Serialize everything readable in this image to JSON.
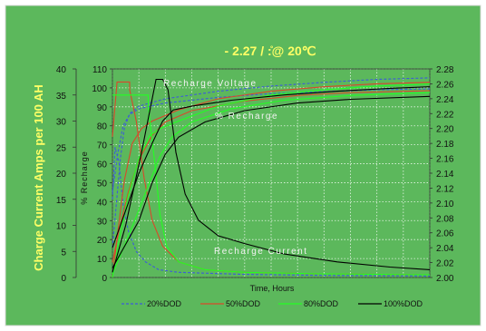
{
  "chart_data": {
    "type": "line",
    "title": "- 2.27   /   :̊@ 20℃",
    "xlabel": "Time, Hours",
    "ylabel_left": "Charge Current Amps per 100  AH",
    "ylabel_inner": "% Recharge",
    "annotations": [
      "Recharge Voltage",
      "% Recharge",
      "Recharge Current"
    ],
    "axis_left": {
      "min": 0,
      "max": 40,
      "ticks": [
        0,
        5,
        10,
        15,
        20,
        25,
        30,
        35,
        40
      ]
    },
    "axis_inner": {
      "min": 0,
      "max": 110,
      "ticks": [
        0,
        10,
        20,
        30,
        40,
        50,
        60,
        70,
        80,
        90,
        100,
        110
      ]
    },
    "axis_right": {
      "min": 2.0,
      "max": 2.28,
      "ticks": [
        "2.00",
        "2.02",
        "2.04",
        "2.06",
        "2.08",
        "2.10",
        "2.12",
        "2.14",
        "2.16",
        "2.18",
        "2.20",
        "2.22",
        "2.24",
        "2.26",
        "2.28"
      ]
    },
    "x_range": [
      0,
      24
    ],
    "grid": true,
    "legend_position": "bottom",
    "colors": {
      "background": "#5cb85c",
      "20%DOD": "#3d5bd9",
      "50%DOD": "#d9482a",
      "80%DOD": "#22ff22",
      "100%DOD": "#000000"
    },
    "series": [
      {
        "name": "20%DOD",
        "color": "#3d5bd9",
        "dashed": true,
        "voltage": [
          [
            0,
            2.04
          ],
          [
            0.3,
            2.1
          ],
          [
            0.6,
            2.16
          ],
          [
            0.9,
            2.2
          ],
          [
            1.3,
            2.22
          ],
          [
            2,
            2.23
          ],
          [
            4,
            2.24
          ],
          [
            8,
            2.25
          ],
          [
            12,
            2.257
          ],
          [
            16,
            2.262
          ],
          [
            20,
            2.266
          ],
          [
            24,
            2.268
          ]
        ],
        "current": [
          [
            0,
            15
          ],
          [
            0.2,
            25
          ],
          [
            0.5,
            22
          ],
          [
            0.8,
            14
          ],
          [
            1.2,
            9
          ],
          [
            1.8,
            5
          ],
          [
            2.5,
            3
          ],
          [
            3.5,
            1.5
          ],
          [
            5,
            1
          ],
          [
            10,
            0.6
          ],
          [
            16,
            0.4
          ],
          [
            24,
            0.3
          ]
        ],
        "recharge": [
          [
            0,
            45
          ],
          [
            0.4,
            65
          ],
          [
            0.8,
            80
          ],
          [
            1.3,
            86
          ],
          [
            2,
            89
          ],
          [
            4,
            92
          ],
          [
            8,
            95
          ],
          [
            12,
            97
          ],
          [
            16,
            98
          ],
          [
            20,
            99
          ],
          [
            24,
            99.5
          ]
        ]
      },
      {
        "name": "50%DOD",
        "color": "#d9482a",
        "dashed": false,
        "voltage": [
          [
            0,
            2.0
          ],
          [
            0.4,
            2.06
          ],
          [
            0.9,
            2.13
          ],
          [
            1.5,
            2.18
          ],
          [
            2.2,
            2.2
          ],
          [
            3,
            2.21
          ],
          [
            5,
            2.225
          ],
          [
            8,
            2.24
          ],
          [
            12,
            2.25
          ],
          [
            16,
            2.256
          ],
          [
            20,
            2.26
          ],
          [
            24,
            2.262
          ]
        ],
        "current": [
          [
            0,
            27
          ],
          [
            0.35,
            37.5
          ],
          [
            1.3,
            37.5
          ],
          [
            1.3,
            36
          ],
          [
            1.8,
            30
          ],
          [
            2.4,
            19
          ],
          [
            3,
            11
          ],
          [
            3.8,
            6
          ],
          [
            5,
            3
          ],
          [
            7,
            1.5
          ],
          [
            10,
            1
          ],
          [
            16,
            0.7
          ],
          [
            24,
            0.5
          ]
        ],
        "recharge": [
          [
            0,
            8
          ],
          [
            0.5,
            25
          ],
          [
            1.2,
            45
          ],
          [
            2,
            62
          ],
          [
            3,
            75
          ],
          [
            4,
            82
          ],
          [
            6,
            88
          ],
          [
            10,
            93
          ],
          [
            14,
            96
          ],
          [
            18,
            97.5
          ],
          [
            24,
            98.5
          ]
        ]
      },
      {
        "name": "80%DOD",
        "color": "#22ff22",
        "dashed": false,
        "voltage": [
          [
            0,
            2.0
          ],
          [
            0.5,
            2.05
          ],
          [
            1.2,
            2.11
          ],
          [
            2,
            2.16
          ],
          [
            2.8,
            2.19
          ],
          [
            3.6,
            2.2
          ],
          [
            5,
            2.21
          ],
          [
            8,
            2.23
          ],
          [
            12,
            2.245
          ],
          [
            16,
            2.252
          ],
          [
            20,
            2.257
          ],
          [
            24,
            2.26
          ]
        ],
        "current": [
          [
            0,
            35
          ],
          [
            2.7,
            35
          ],
          [
            2.7,
            33
          ],
          [
            3.2,
            22
          ],
          [
            3.6,
            12
          ],
          [
            4.1,
            6
          ],
          [
            5,
            3
          ],
          [
            7,
            1.5
          ],
          [
            10,
            1
          ],
          [
            16,
            0.7
          ],
          [
            24,
            0.5
          ]
        ],
        "recharge": [
          [
            0,
            2
          ],
          [
            0.8,
            15
          ],
          [
            1.8,
            32
          ],
          [
            2.8,
            50
          ],
          [
            3.6,
            64
          ],
          [
            4.5,
            74
          ],
          [
            6,
            82
          ],
          [
            9,
            89
          ],
          [
            13,
            93.5
          ],
          [
            18,
            96
          ],
          [
            24,
            97.5
          ]
        ]
      },
      {
        "name": "100%DOD",
        "color": "#000000",
        "dashed": false,
        "voltage": [
          [
            0,
            2.04
          ],
          [
            1,
            2.09
          ],
          [
            2,
            2.14
          ],
          [
            3,
            2.18
          ],
          [
            3.8,
            2.21
          ],
          [
            4.6,
            2.225
          ],
          [
            6,
            2.23
          ],
          [
            9,
            2.238
          ],
          [
            13,
            2.245
          ],
          [
            17,
            2.25
          ],
          [
            21,
            2.254
          ],
          [
            24,
            2.256
          ]
        ],
        "current": [
          [
            0,
            1
          ],
          [
            1,
            10
          ],
          [
            2.2,
            24
          ],
          [
            3.3,
            38
          ],
          [
            3.8,
            38
          ],
          [
            4.2,
            36
          ],
          [
            4.8,
            24
          ],
          [
            5.5,
            16
          ],
          [
            6.5,
            11
          ],
          [
            8,
            8
          ],
          [
            10,
            6.5
          ],
          [
            13,
            4.5
          ],
          [
            17,
            3
          ],
          [
            21,
            2
          ],
          [
            24,
            1.5
          ]
        ],
        "recharge": [
          [
            0,
            5
          ],
          [
            2,
            30
          ],
          [
            3,
            50
          ],
          [
            4,
            65
          ],
          [
            5,
            74
          ],
          [
            7,
            82
          ],
          [
            10,
            88
          ],
          [
            14,
            92
          ],
          [
            18,
            94
          ],
          [
            24,
            95.5
          ]
        ]
      }
    ]
  }
}
